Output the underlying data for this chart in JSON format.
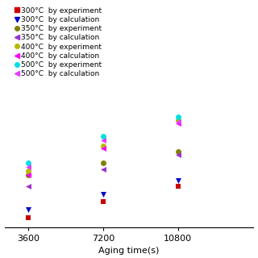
{
  "title": "",
  "xlabel": "Aging time(s)",
  "ylabel": "",
  "xlim": [
    2500,
    14400
  ],
  "ylim": [
    0,
    10
  ],
  "xticks": [
    3600,
    7200,
    10800
  ],
  "xtick_labels": [
    "3600",
    "7200",
    "10800"
  ],
  "series": [
    {
      "label": "300°C  by experiment",
      "marker": "s",
      "color": "#cc0000",
      "data": [
        [
          3600,
          0.8
        ],
        [
          7200,
          2.2
        ],
        [
          10800,
          3.5
        ]
      ]
    },
    {
      "label": "300°C  by calculation",
      "marker": "v",
      "color": "#0000cc",
      "data": [
        [
          3600,
          1.5
        ],
        [
          7200,
          2.8
        ],
        [
          10800,
          4.0
        ]
      ]
    },
    {
      "label": "350°C  by experiment",
      "marker": "o",
      "color": "#808000",
      "data": [
        [
          3600,
          4.5
        ],
        [
          7200,
          5.5
        ],
        [
          10800,
          6.5
        ]
      ]
    },
    {
      "label": "350°C  by calculation",
      "marker": "<",
      "color": "#9b30d0",
      "data": [
        [
          3600,
          3.5
        ],
        [
          7200,
          5.0
        ],
        [
          10800,
          6.2
        ]
      ]
    },
    {
      "label": "400°C  by experiment",
      "marker": "o",
      "color": "#b8b800",
      "data": [
        [
          3600,
          4.8
        ],
        [
          7200,
          7.0
        ],
        [
          10800,
          9.2
        ]
      ]
    },
    {
      "label": "400°C  by calculation",
      "marker": "<",
      "color": "#ff00ff",
      "data": [
        [
          3600,
          4.5
        ],
        [
          7200,
          6.8
        ],
        [
          10800,
          8.9
        ]
      ]
    },
    {
      "label": "500°C  by experiment",
      "marker": "o",
      "color": "#00e0e0",
      "data": [
        [
          3600,
          5.5
        ],
        [
          7200,
          7.8
        ],
        [
          10800,
          9.5
        ]
      ]
    },
    {
      "label": "500°C  by calculation",
      "marker": "<",
      "color": "#e040fb",
      "data": [
        [
          3600,
          5.2
        ],
        [
          7200,
          7.5
        ],
        [
          10800,
          9.1
        ]
      ]
    }
  ],
  "background_color": "#ffffff",
  "legend_fontsize": 6.5,
  "axis_fontsize": 8,
  "marker_size": 5
}
